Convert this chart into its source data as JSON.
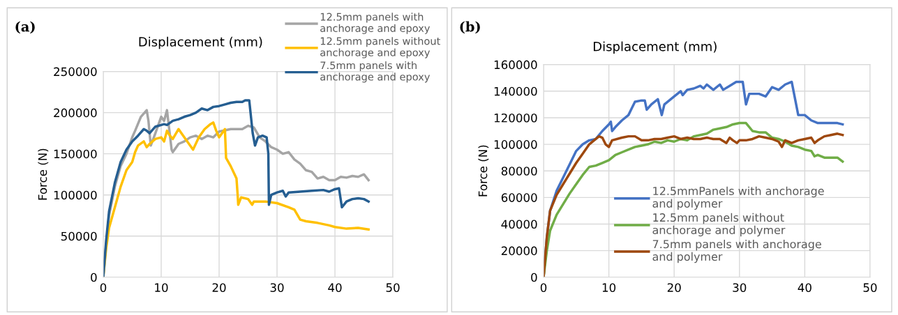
{
  "chart_data": [
    {
      "type": "line",
      "title": "Displacement (mm)",
      "ylabel": "Force (N)",
      "annotations": [
        "(a)"
      ],
      "xlim": [
        0,
        50
      ],
      "xticks": [
        0,
        10,
        20,
        30,
        40,
        50
      ],
      "ylim": [
        0,
        250000
      ],
      "yticks": [
        0,
        50000,
        100000,
        150000,
        200000,
        250000
      ],
      "grid": true,
      "legend": "top right",
      "series": [
        {
          "name": "12.5mm panels with\nanchorage and epoxy",
          "color": "#a5a5a5",
          "x": [
            0,
            0.5,
            1,
            2,
            3,
            4,
            5,
            5.5,
            6.5,
            7.5,
            7.8,
            8.2,
            9,
            10,
            10.5,
            11,
            11.3,
            11.8,
            12,
            13,
            14,
            15,
            16,
            17,
            18,
            19,
            20,
            22,
            24,
            25,
            26,
            27,
            28,
            29,
            30,
            31,
            32,
            33,
            34,
            35,
            36,
            37,
            38,
            39,
            40,
            41,
            42,
            43,
            44,
            45,
            45.8
          ],
          "values": [
            0,
            40000,
            75000,
            110000,
            135000,
            150000,
            170000,
            178000,
            195000,
            203000,
            190000,
            160000,
            175000,
            195000,
            190000,
            203000,
            185000,
            155000,
            152000,
            162000,
            165000,
            170000,
            172000,
            168000,
            172000,
            170000,
            177000,
            180000,
            180000,
            184000,
            182000,
            170000,
            165000,
            158000,
            155000,
            150000,
            152000,
            143000,
            138000,
            130000,
            128000,
            120000,
            122000,
            118000,
            118000,
            122000,
            121000,
            123000,
            122000,
            125000,
            118000
          ]
        },
        {
          "name": "12.5mm panels without\nanchorage and epoxy",
          "color": "#ffc000",
          "x": [
            0,
            0.5,
            1,
            2,
            3,
            4,
            5,
            5.5,
            6,
            7,
            7.5,
            8,
            9,
            10,
            10.5,
            11,
            11.5,
            12,
            13,
            13.5,
            14.5,
            15.5,
            16.5,
            17.5,
            18.5,
            19,
            19.5,
            20,
            20.5,
            21,
            21.2,
            22,
            23,
            23.2,
            23.3,
            23.8,
            25,
            25.7,
            26,
            28,
            30,
            32,
            33,
            34,
            35,
            37,
            39,
            40,
            42,
            44,
            45.8
          ],
          "values": [
            0,
            35000,
            60000,
            85000,
            110000,
            130000,
            140000,
            152000,
            160000,
            165000,
            158000,
            162000,
            168000,
            170000,
            165000,
            178000,
            172000,
            168000,
            180000,
            175000,
            165000,
            155000,
            170000,
            180000,
            186000,
            188000,
            178000,
            170000,
            175000,
            180000,
            145000,
            135000,
            120000,
            100000,
            88000,
            97000,
            95000,
            88000,
            92000,
            92000,
            90000,
            85000,
            82000,
            70000,
            68000,
            66000,
            63000,
            61000,
            59000,
            60000,
            58000
          ]
        },
        {
          "name": "7.5mm panels with\nanchorage and epoxy",
          "color": "#255e91",
          "x": [
            0,
            0.5,
            1,
            2,
            3,
            4,
            5,
            6,
            7,
            7.5,
            8,
            9,
            10,
            10.5,
            11,
            12,
            13,
            14,
            15,
            16,
            17,
            18,
            19,
            20,
            21,
            22,
            23,
            24,
            24.5,
            25.2,
            25.8,
            26.2,
            26.7,
            27.5,
            28.2,
            28.5,
            28.6,
            29,
            30,
            31,
            31.5,
            32,
            34,
            36,
            38,
            39,
            40,
            40.7,
            41.2,
            42,
            43,
            44,
            45,
            45.8
          ],
          "values": [
            0,
            45000,
            80000,
            115000,
            140000,
            155000,
            165000,
            172000,
            180000,
            178000,
            175000,
            183000,
            185000,
            186000,
            185000,
            190000,
            192000,
            195000,
            197000,
            200000,
            205000,
            203000,
            207000,
            208000,
            210000,
            212000,
            213000,
            213000,
            215000,
            215000,
            175000,
            160000,
            170000,
            172000,
            170000,
            150000,
            88000,
            100000,
            103000,
            105000,
            98000,
            103000,
            104000,
            105000,
            106000,
            104000,
            107000,
            108000,
            85000,
            92000,
            95000,
            96000,
            95000,
            92000
          ]
        }
      ]
    },
    {
      "type": "line",
      "title": "Displacement (mm)",
      "ylabel": "Force (N)",
      "annotations": [
        "(b)"
      ],
      "xlim": [
        0,
        50
      ],
      "xticks": [
        0,
        10,
        20,
        30,
        40,
        50
      ],
      "ylim": [
        0,
        160000
      ],
      "yticks": [
        0,
        20000,
        40000,
        60000,
        80000,
        100000,
        120000,
        140000,
        160000
      ],
      "grid": true,
      "legend": "bottom",
      "series": [
        {
          "name": "12.5mmPanels with anchorage\nand polymer",
          "color": "#4472c4",
          "x": [
            0,
            0.5,
            1,
            2,
            3,
            4,
            5,
            6,
            7,
            8,
            9,
            10,
            10.3,
            10.5,
            11,
            12,
            13,
            13.5,
            14,
            15,
            15.5,
            15.8,
            16.5,
            17.5,
            18.1,
            18.5,
            20,
            21,
            21.3,
            22,
            23,
            24,
            24.5,
            25,
            26,
            27,
            27.5,
            28.5,
            29.5,
            30.5,
            31,
            31.5,
            33,
            34,
            35,
            36,
            37,
            38,
            39,
            40,
            41,
            42,
            43,
            44,
            45,
            45.8
          ],
          "values": [
            0,
            30000,
            50000,
            65000,
            75000,
            85000,
            95000,
            100000,
            103000,
            104000,
            110000,
            115000,
            117000,
            110000,
            113000,
            118000,
            122000,
            127000,
            132000,
            133000,
            133000,
            126000,
            130000,
            134000,
            122000,
            130000,
            136000,
            140000,
            137000,
            141000,
            142000,
            144000,
            142000,
            145000,
            141000,
            145000,
            141000,
            144000,
            147000,
            147000,
            130000,
            138000,
            138000,
            136000,
            143000,
            141000,
            145000,
            147000,
            122000,
            122000,
            118000,
            116000,
            116000,
            116000,
            116000,
            115000
          ]
        },
        {
          "name": "12.5mm panels without\nanchorage and polymer",
          "color": "#70ad47",
          "x": [
            0,
            0.5,
            1,
            2,
            3,
            4,
            5,
            6,
            7,
            8,
            9,
            10,
            11,
            12,
            13,
            14,
            15,
            16,
            17,
            18,
            19,
            20,
            21,
            22,
            23,
            24,
            25,
            26,
            27,
            28,
            29,
            30,
            31,
            32,
            33,
            34,
            35,
            36,
            37,
            38,
            39,
            40,
            41,
            41.5,
            42,
            43,
            44,
            45,
            45.8
          ],
          "values": [
            0,
            20000,
            35000,
            47000,
            55000,
            63000,
            70000,
            77000,
            83000,
            84000,
            86000,
            88000,
            92000,
            94000,
            96000,
            98000,
            99000,
            100000,
            102000,
            101000,
            103000,
            102000,
            104000,
            103000,
            106000,
            107000,
            108000,
            111000,
            112000,
            113000,
            115000,
            116000,
            116000,
            110000,
            109000,
            109000,
            105000,
            104000,
            102000,
            99000,
            98000,
            96000,
            95000,
            91000,
            92000,
            90000,
            90000,
            90000,
            87000
          ]
        },
        {
          "name": "7.5mm panels with anchorage\nand polymer",
          "color": "#9e480e",
          "x": [
            0,
            0.5,
            1,
            2,
            3,
            4,
            5,
            6,
            7,
            8,
            8.5,
            9,
            9.5,
            10,
            10.5,
            12,
            13,
            14,
            15,
            16,
            17,
            18,
            19,
            20,
            21,
            22,
            23,
            24,
            25,
            26,
            27,
            28,
            28.5,
            29,
            29.6,
            30,
            31,
            32,
            33,
            34,
            35,
            36,
            36.5,
            37,
            38,
            39,
            40,
            41,
            41.5,
            42,
            43,
            44,
            45,
            45.8
          ],
          "values": [
            0,
            30000,
            50000,
            62000,
            70000,
            78000,
            86000,
            93000,
            100000,
            104000,
            106000,
            105000,
            100000,
            98000,
            103000,
            105000,
            106000,
            106000,
            103000,
            103000,
            104000,
            104000,
            105000,
            106000,
            104000,
            105000,
            104000,
            104000,
            105000,
            104000,
            104000,
            101000,
            105000,
            103000,
            101000,
            103000,
            103000,
            104000,
            106000,
            105000,
            104000,
            102000,
            98000,
            103000,
            101000,
            103000,
            104000,
            105000,
            101000,
            103000,
            106000,
            107000,
            108000,
            107000
          ]
        }
      ]
    }
  ]
}
